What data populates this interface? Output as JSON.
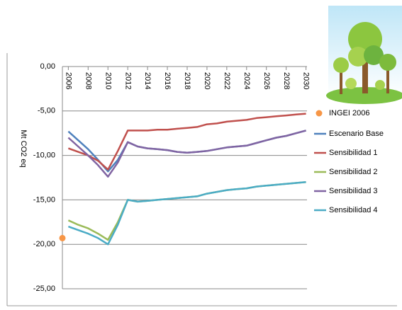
{
  "chart_data": {
    "type": "line",
    "y_label": "Mt CO2 eq",
    "x": [
      2006,
      2007,
      2008,
      2009,
      2010,
      2011,
      2012,
      2013,
      2014,
      2015,
      2016,
      2017,
      2018,
      2019,
      2020,
      2021,
      2022,
      2023,
      2024,
      2025,
      2026,
      2027,
      2028,
      2029,
      2030
    ],
    "xlim": [
      2005.4,
      2030.1
    ],
    "xticks": [
      2006,
      2008,
      2010,
      2012,
      2014,
      2016,
      2018,
      2020,
      2022,
      2024,
      2026,
      2028,
      2030
    ],
    "ylim": [
      -25,
      0
    ],
    "yticks": [
      {
        "value": 0,
        "label": "0,00"
      },
      {
        "value": -5,
        "label": "-5,00"
      },
      {
        "value": -10,
        "label": "-10,00"
      },
      {
        "value": -15,
        "label": "-15,00"
      },
      {
        "value": -20,
        "label": "-20,00"
      },
      {
        "value": -25,
        "label": "-25,00"
      }
    ],
    "grid": true,
    "legend": "right",
    "series": [
      {
        "name": "INGEI 2006",
        "color": "#f79646",
        "marker": "circle",
        "x": [
          2005.4
        ],
        "values": [
          -19.3
        ]
      },
      {
        "name": "Escenario Base",
        "color": "#4f81bd",
        "values": [
          -7.3,
          -8.3,
          -9.3,
          -10.5,
          -11.8,
          -10.5,
          -8.5,
          -9.0,
          -9.2,
          -9.3,
          -9.4,
          -9.6,
          -9.7,
          -9.6,
          -9.5,
          -9.3,
          -9.1,
          -9.0,
          -8.9,
          -8.6,
          -8.3,
          -8.0,
          -7.8,
          -7.5,
          -7.2
        ]
      },
      {
        "name": "Sensibilidad 1",
        "color": "#c0504d",
        "values": [
          -9.2,
          -9.6,
          -10.0,
          -10.6,
          -11.6,
          -9.5,
          -7.2,
          -7.2,
          -7.2,
          -7.1,
          -7.1,
          -7.0,
          -6.9,
          -6.8,
          -6.5,
          -6.4,
          -6.2,
          -6.1,
          -6.0,
          -5.8,
          -5.7,
          -5.6,
          -5.5,
          -5.4,
          -5.3
        ]
      },
      {
        "name": "Sensibilidad 2",
        "color": "#9bbb59",
        "values": [
          -17.3,
          -17.8,
          -18.2,
          -18.8,
          -19.5,
          -17.5,
          -15.0,
          -15.2,
          -15.1,
          -15.0,
          -14.9,
          -14.8,
          -14.7,
          -14.6,
          -14.3,
          -14.1,
          -13.9,
          -13.8,
          -13.7,
          -13.5,
          -13.4,
          -13.3,
          -13.2,
          -13.1,
          -13.0
        ]
      },
      {
        "name": "Sensibilidad 3",
        "color": "#8064a2",
        "values": [
          -8.0,
          -9.0,
          -10.0,
          -11.1,
          -12.4,
          -10.8,
          -8.5,
          -9.0,
          -9.2,
          -9.3,
          -9.4,
          -9.6,
          -9.7,
          -9.6,
          -9.5,
          -9.3,
          -9.1,
          -9.0,
          -8.9,
          -8.6,
          -8.3,
          -8.0,
          -7.8,
          -7.5,
          -7.2
        ]
      },
      {
        "name": "Sensibilidad 4",
        "color": "#4bacc6",
        "values": [
          -18.0,
          -18.4,
          -18.8,
          -19.3,
          -20.0,
          -17.8,
          -15.0,
          -15.2,
          -15.1,
          -15.0,
          -14.9,
          -14.8,
          -14.7,
          -14.6,
          -14.3,
          -14.1,
          -13.9,
          -13.8,
          -13.7,
          -13.5,
          -13.4,
          -13.3,
          -13.2,
          -13.1,
          -13.0
        ]
      }
    ]
  }
}
